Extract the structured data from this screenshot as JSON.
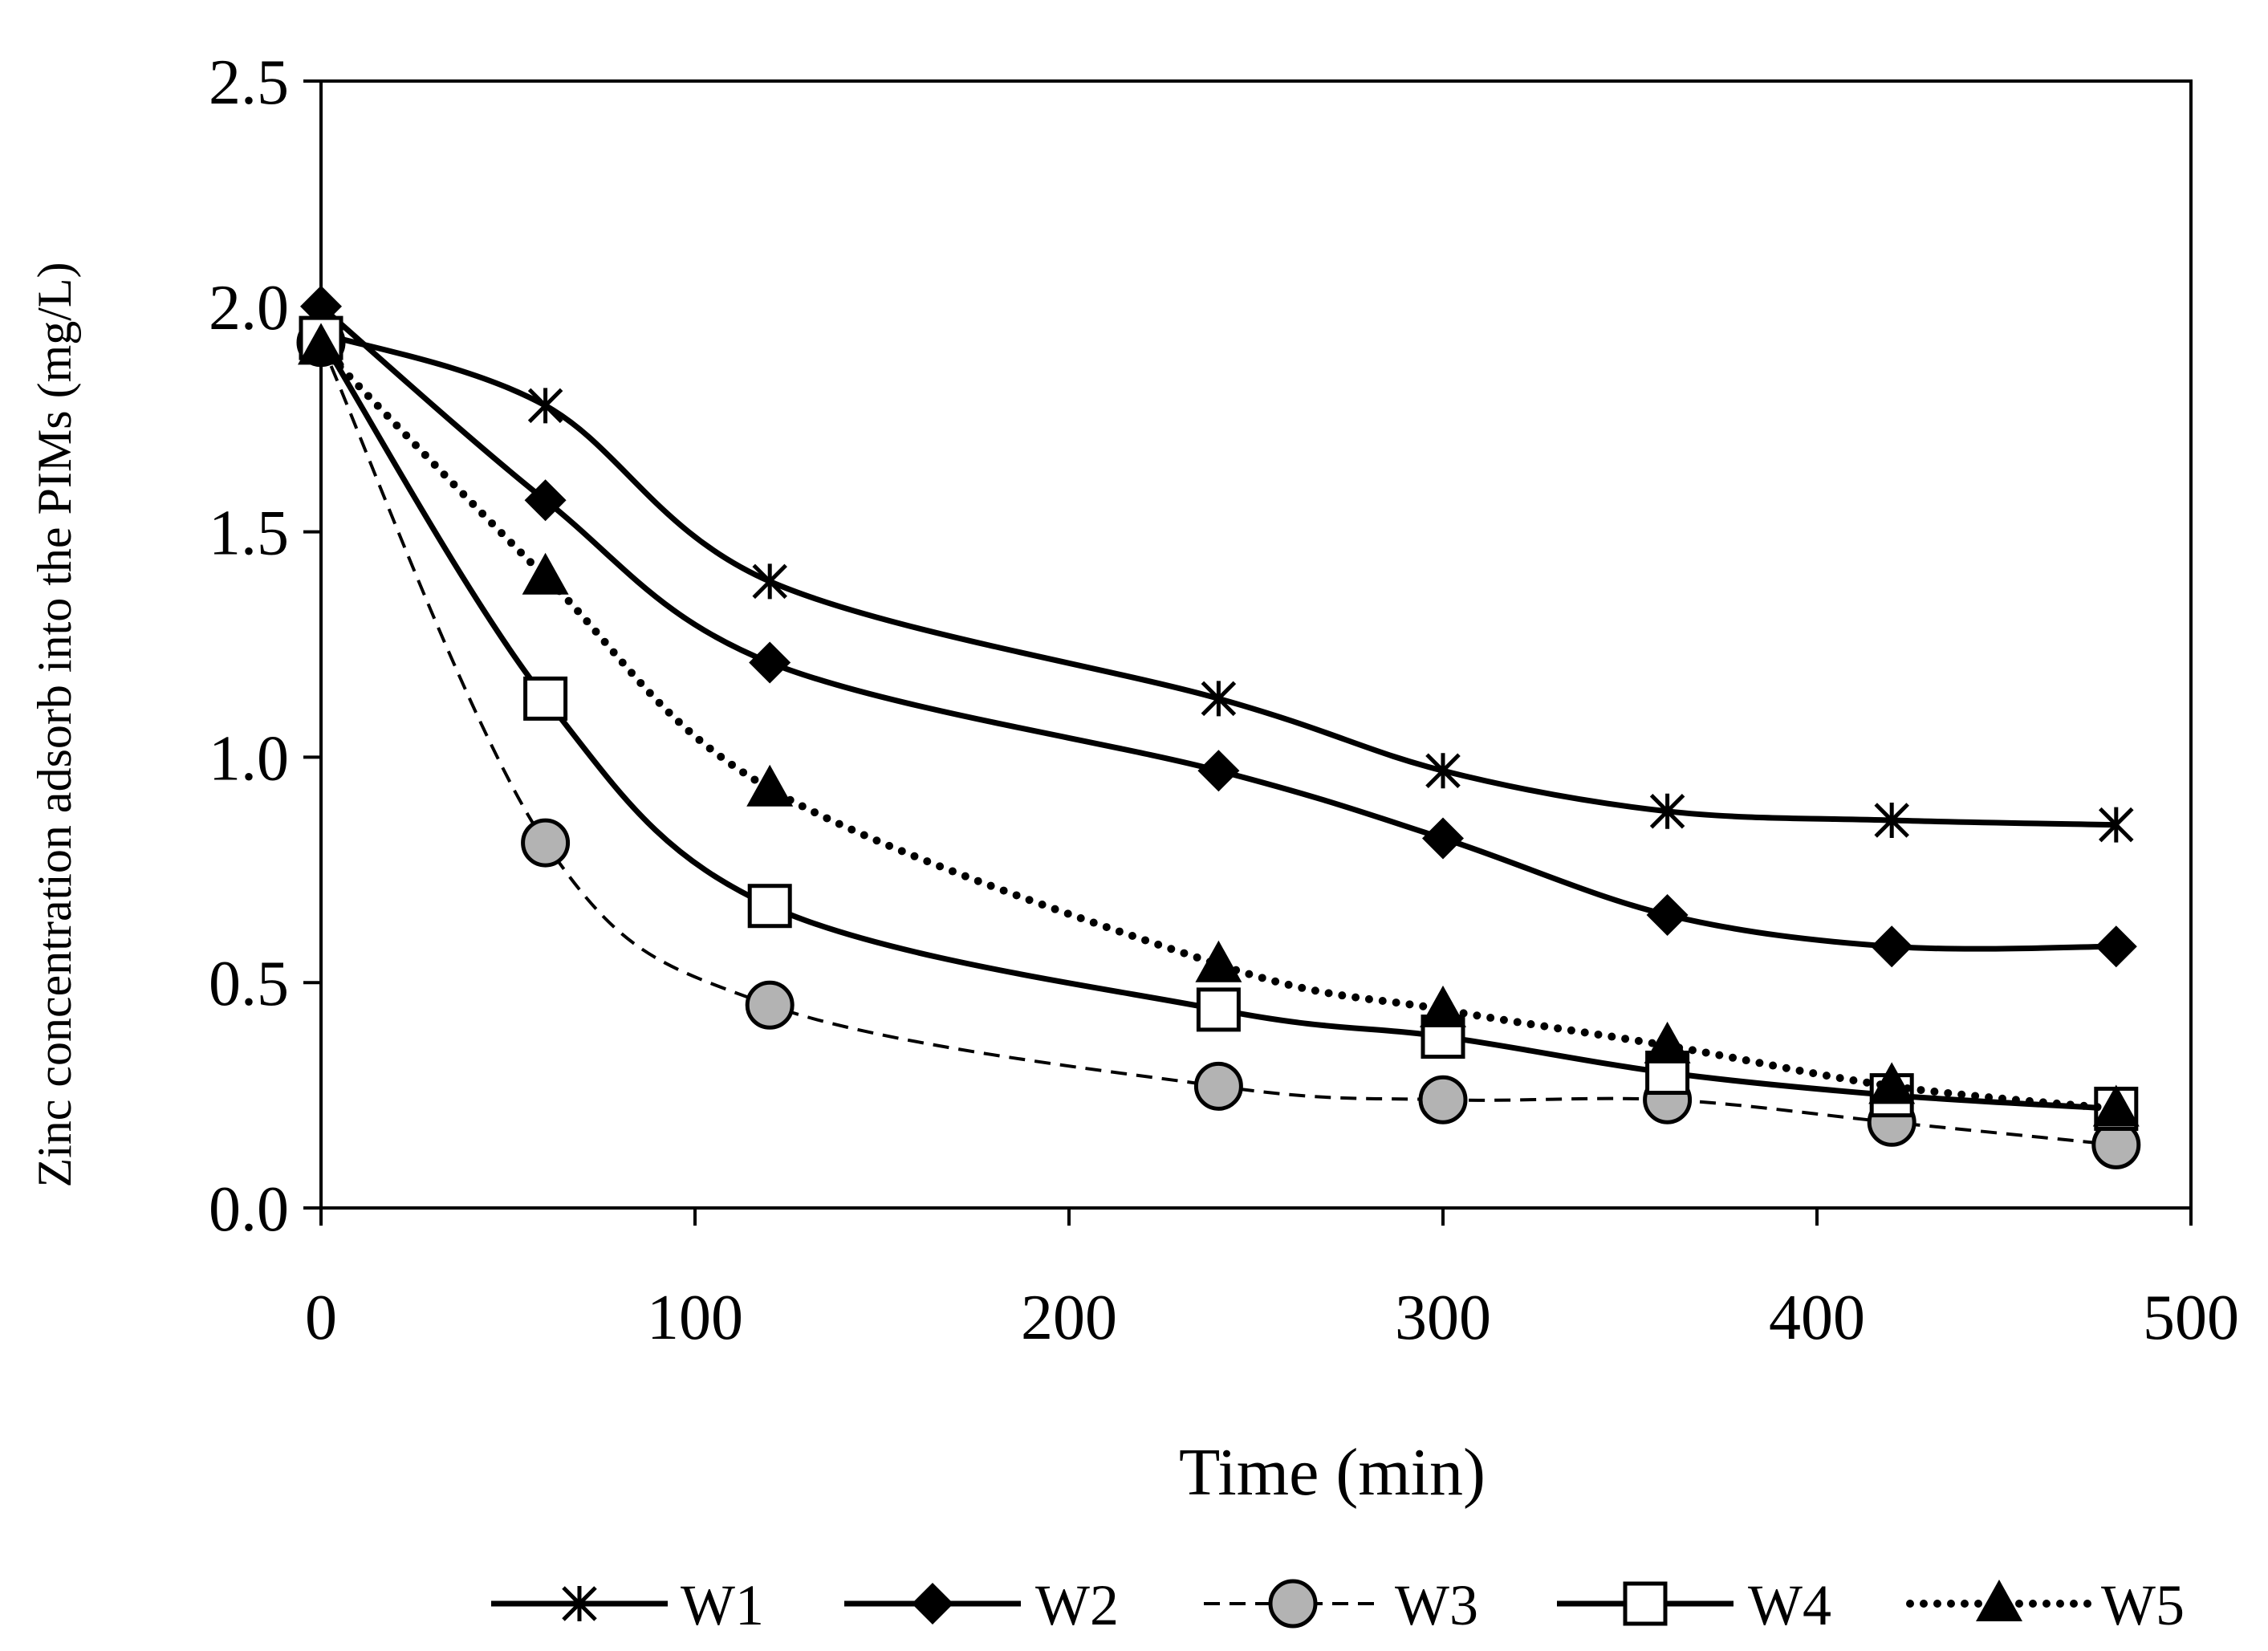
{
  "chart_data": {
    "type": "line",
    "title": "",
    "xlabel": "Time (min)",
    "ylabel": "Zinc concentration adsorb into the PIMs (mg/L)",
    "xlim": [
      0,
      500
    ],
    "ylim": [
      0.0,
      2.5
    ],
    "x_ticks": [
      0,
      100,
      200,
      300,
      400,
      500
    ],
    "y_ticks": [
      0.0,
      0.5,
      1.0,
      1.5,
      2.0,
      2.5
    ],
    "x_tick_labels": [
      "0",
      "100",
      "200",
      "300",
      "400",
      "500"
    ],
    "y_tick_labels": [
      "0.0",
      "0.5",
      "1.0",
      "1.5",
      "2.0",
      "2.5"
    ],
    "grid": false,
    "legend_position": "bottom",
    "x": [
      0,
      60,
      120,
      240,
      300,
      360,
      420,
      480
    ],
    "series": [
      {
        "name": "W1",
        "marker": "asterisk",
        "line": "solid",
        "values": [
          1.94,
          1.78,
          1.39,
          1.13,
          0.97,
          0.88,
          0.86,
          0.85
        ]
      },
      {
        "name": "W2",
        "marker": "diamond",
        "line": "solid",
        "values": [
          2.0,
          1.57,
          1.21,
          0.97,
          0.82,
          0.65,
          0.58,
          0.58
        ]
      },
      {
        "name": "W3",
        "marker": "circle",
        "line": "dashed",
        "values": [
          1.92,
          0.81,
          0.45,
          0.27,
          0.24,
          0.24,
          0.19,
          0.14
        ]
      },
      {
        "name": "W4",
        "marker": "square",
        "line": "solid",
        "values": [
          1.93,
          1.13,
          0.67,
          0.44,
          0.38,
          0.3,
          0.25,
          0.22
        ]
      },
      {
        "name": "W5",
        "marker": "triangle",
        "line": "dotted",
        "values": [
          1.91,
          1.4,
          0.93,
          0.54,
          0.44,
          0.36,
          0.27,
          0.22
        ]
      }
    ],
    "colors": {
      "line": "#000000",
      "circle_fill": "#b3b3b3",
      "square_fill": "#ffffff",
      "solid_fill": "#000000"
    }
  }
}
